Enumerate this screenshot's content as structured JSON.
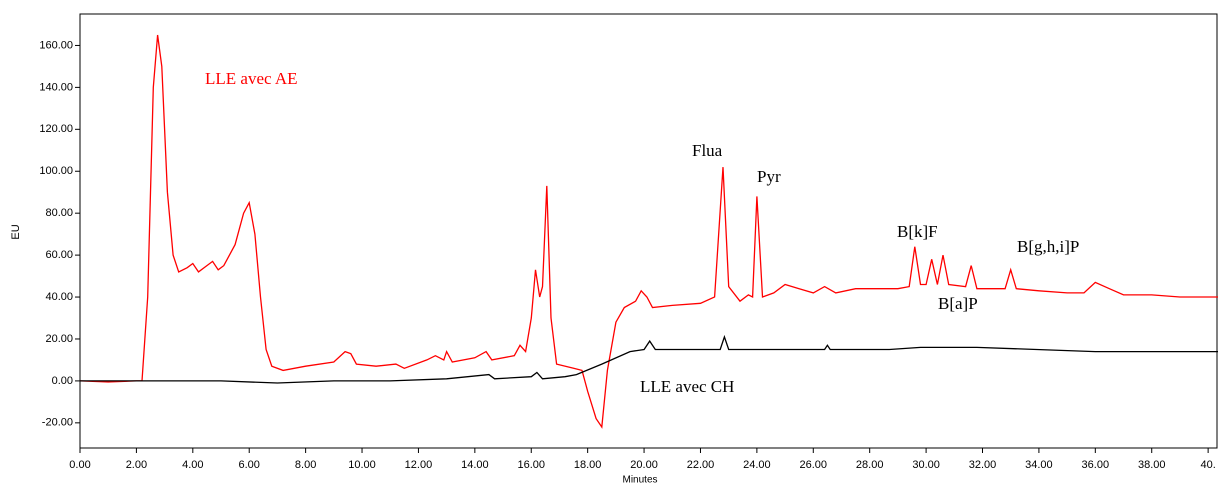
{
  "chart_data": {
    "type": "line",
    "xlabel": "Minutes",
    "ylabel": "EU",
    "xlim": [
      0,
      40.35
    ],
    "ylim": [
      -32,
      175
    ],
    "xticks": [
      {
        "value": 0,
        "label": "0.00"
      },
      {
        "value": 2,
        "label": "2.00"
      },
      {
        "value": 4,
        "label": "4.00"
      },
      {
        "value": 6,
        "label": "6.00"
      },
      {
        "value": 8,
        "label": "8.00"
      },
      {
        "value": 10,
        "label": "10.00"
      },
      {
        "value": 12,
        "label": "12.00"
      },
      {
        "value": 14,
        "label": "14.00"
      },
      {
        "value": 16,
        "label": "16.00"
      },
      {
        "value": 18,
        "label": "18.00"
      },
      {
        "value": 20,
        "label": "20.00"
      },
      {
        "value": 22,
        "label": "22.00"
      },
      {
        "value": 24,
        "label": "24.00"
      },
      {
        "value": 26,
        "label": "26.00"
      },
      {
        "value": 28,
        "label": "28.00"
      },
      {
        "value": 30,
        "label": "30.00"
      },
      {
        "value": 32,
        "label": "32.00"
      },
      {
        "value": 34,
        "label": "34.00"
      },
      {
        "value": 36,
        "label": "36.00"
      },
      {
        "value": 38,
        "label": "38.00"
      },
      {
        "value": 40,
        "label": "40."
      }
    ],
    "yticks": [
      {
        "value": -20,
        "label": "-20.00"
      },
      {
        "value": 0,
        "label": "0.00"
      },
      {
        "value": 20,
        "label": "20.00"
      },
      {
        "value": 40,
        "label": "40.00"
      },
      {
        "value": 60,
        "label": "60.00"
      },
      {
        "value": 80,
        "label": "80.00"
      },
      {
        "value": 100,
        "label": "100.00"
      },
      {
        "value": 120,
        "label": "120.00"
      },
      {
        "value": 140,
        "label": "140.00"
      },
      {
        "value": 160,
        "label": "160.00"
      }
    ],
    "grid": false,
    "annotations": [
      "LLE avec AE",
      "LLE avec CH",
      "Flua",
      "Pyr",
      "B[k]F",
      "B[a]P",
      "B[g,h,i]P"
    ],
    "series": [
      {
        "color": "#ff0000",
        "x": [
          0,
          1,
          2,
          2.2,
          2.4,
          2.6,
          2.75,
          2.9,
          3.1,
          3.3,
          3.5,
          3.8,
          4.0,
          4.2,
          4.5,
          4.7,
          4.9,
          5.1,
          5.5,
          5.8,
          6.0,
          6.2,
          6.4,
          6.6,
          6.8,
          7.2,
          8,
          9,
          9.4,
          9.6,
          9.8,
          10.5,
          11.2,
          11.5,
          12.3,
          12.6,
          12.9,
          13.0,
          13.2,
          14,
          14.4,
          14.6,
          15.4,
          15.6,
          15.8,
          16.0,
          16.15,
          16.3,
          16.4,
          16.55,
          16.7,
          16.9,
          17.5,
          17.8,
          18.0,
          18.3,
          18.5,
          18.7,
          19.0,
          19.3,
          19.7,
          19.9,
          20.1,
          20.3,
          21,
          22,
          22.5,
          22.8,
          23.0,
          23.4,
          23.7,
          23.85,
          24.0,
          24.2,
          24.6,
          25.0,
          25.5,
          26,
          26.4,
          26.8,
          27.5,
          28,
          29,
          29.4,
          29.6,
          29.8,
          30.0,
          30.2,
          30.4,
          30.6,
          30.8,
          31.4,
          31.6,
          31.8,
          32.8,
          33.0,
          33.2,
          34,
          35,
          35.6,
          36.0,
          36.5,
          37,
          38,
          39,
          40,
          40.35
        ],
        "values": [
          0,
          -0.5,
          0,
          0,
          40,
          140,
          165,
          150,
          90,
          60,
          52,
          54,
          56,
          52,
          55,
          57,
          53,
          55,
          65,
          80,
          85,
          70,
          40,
          15,
          7,
          5,
          7,
          9,
          14,
          13,
          8,
          7,
          8,
          6,
          10,
          12,
          10,
          14,
          9,
          11,
          14,
          10,
          12,
          17,
          14,
          30,
          53,
          40,
          45,
          93,
          30,
          8,
          6,
          5,
          -5,
          -18,
          -22,
          5,
          28,
          35,
          38,
          43,
          40,
          35,
          36,
          37,
          40,
          102,
          45,
          38,
          41,
          40,
          88,
          40,
          42,
          46,
          44,
          42,
          45,
          42,
          44,
          44,
          44,
          45,
          64,
          46,
          46,
          58,
          46,
          60,
          46,
          45,
          55,
          44,
          44,
          53,
          44,
          43,
          42,
          42,
          47,
          44,
          41,
          41,
          40,
          40,
          40
        ]
      },
      {
        "color": "#000000",
        "x": [
          0,
          3,
          5,
          7,
          9,
          11,
          13,
          14.5,
          14.7,
          16,
          16.2,
          16.4,
          17.2,
          17.6,
          18.5,
          19.5,
          20,
          20.2,
          20.4,
          22.7,
          22.85,
          23.0,
          26.4,
          26.5,
          26.6,
          28.7,
          29.8,
          30.4,
          31.8,
          36,
          40.35
        ],
        "values": [
          0,
          0,
          0,
          -1,
          0,
          0,
          1,
          3,
          1,
          2,
          4,
          1,
          2,
          3,
          8,
          14,
          15,
          19,
          15,
          15,
          21,
          15,
          15,
          17,
          15,
          15,
          16,
          16,
          16,
          14,
          14
        ]
      }
    ]
  }
}
